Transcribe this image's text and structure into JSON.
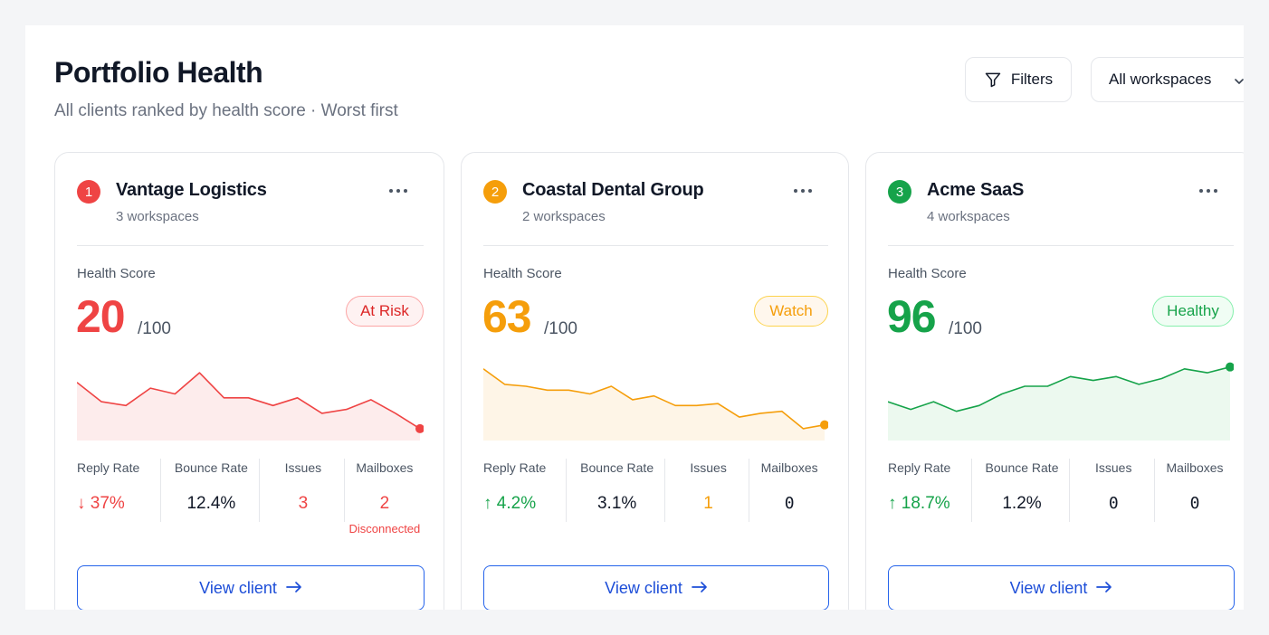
{
  "header": {
    "title": "Portfolio Health",
    "subtitle": "All clients ranked by health score · Worst first",
    "filters_label": "Filters",
    "filter_icon": "filter-icon",
    "workspace_select": "All workspaces"
  },
  "metric_labels": {
    "reply_rate": "Reply Rate",
    "bounce_rate": "Bounce Rate",
    "issues": "Issues",
    "mailboxes": "Mailboxes"
  },
  "health_score_label": "Health Score",
  "score_max": "/100",
  "view_client_label": "View client",
  "clients": [
    {
      "rank": "1",
      "name": "Vantage Logistics",
      "workspaces": "3 workspaces",
      "score": "20",
      "status": "At Risk",
      "accent": "#ef4444",
      "badge_bg": "#fef2f2",
      "badge_border": "#fca5a5",
      "badge_text": "#dc2626",
      "fill": "#fdecec",
      "reply_arrow": "↓",
      "reply_rate": "37%",
      "bounce_rate": "12.4%",
      "issues": "3",
      "mailboxes": "2",
      "mailboxes_note": "Disconnected",
      "trend": [
        72,
        62,
        60,
        69,
        66,
        77,
        64,
        64,
        60,
        64,
        56,
        58,
        63,
        56,
        48
      ]
    },
    {
      "rank": "2",
      "name": "Coastal Dental Group",
      "workspaces": "2 workspaces",
      "score": "63",
      "status": "Watch",
      "accent": "#f59e0b",
      "badge_bg": "#fff7ed",
      "badge_border": "#fcd34d",
      "badge_text": "#f59e0b",
      "fill": "#fef5e7",
      "reply_arrow": "↑",
      "reply_rate": "4.2%",
      "bounce_rate": "3.1%",
      "issues": "1",
      "mailboxes": "0",
      "mailboxes_note": "",
      "trend": [
        79,
        71,
        70,
        68,
        68,
        66,
        70,
        63,
        65,
        60,
        60,
        61,
        54,
        56,
        57,
        48,
        50
      ]
    },
    {
      "rank": "3",
      "name": "Acme SaaS",
      "workspaces": "4 workspaces",
      "score": "96",
      "status": "Healthy",
      "accent": "#16a34a",
      "badge_bg": "#f0fdf4",
      "badge_border": "#86efac",
      "badge_text": "#16a34a",
      "fill": "#ecf9ef",
      "reply_arrow": "↑",
      "reply_rate": "18.7%",
      "bounce_rate": "1.2%",
      "issues": "0",
      "mailboxes": "0",
      "mailboxes_note": "",
      "trend": [
        62,
        58,
        62,
        57,
        60,
        66,
        70,
        70,
        75,
        73,
        75,
        71,
        74,
        79,
        77,
        80
      ]
    }
  ]
}
